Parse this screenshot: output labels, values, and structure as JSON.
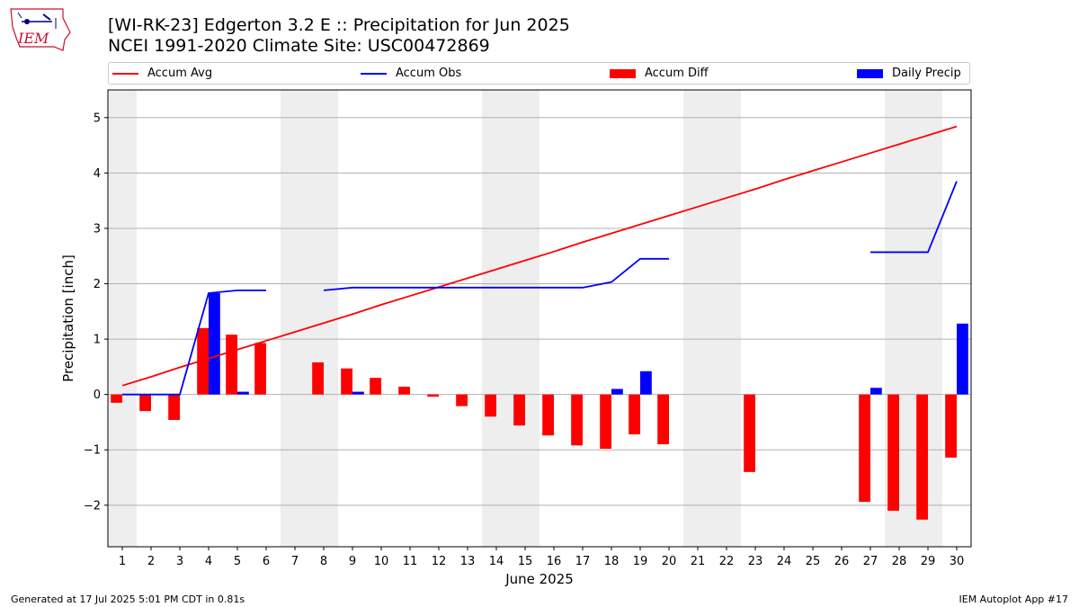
{
  "header": {
    "logo_text": "IEM",
    "title_line1": "[WI-RK-23] Edgerton 3.2 E :: Precipitation for Jun 2025",
    "title_line2": "NCEI 1991-2020 Climate Site: USC00472869"
  },
  "legend": [
    {
      "label": "Accum Avg",
      "kind": "line",
      "color": "#ff0000"
    },
    {
      "label": "Accum Obs",
      "kind": "line",
      "color": "#0000ff"
    },
    {
      "label": "Accum Diff",
      "kind": "bar",
      "color": "#ff0000"
    },
    {
      "label": "Daily Precip",
      "kind": "bar",
      "color": "#0000ff"
    }
  ],
  "footer": {
    "generated": "Generated at 17 Jul 2025 5:01 PM CDT in 0.81s",
    "app": "IEM Autoplot App #17"
  },
  "chart_data": {
    "type": "bar",
    "xlabel": "June 2025",
    "ylabel": "Precipitation [inch]",
    "ylim": [
      -2.75,
      5.5
    ],
    "yticks": [
      -2,
      -1,
      0,
      1,
      2,
      3,
      4,
      5
    ],
    "ytick_labels": [
      "−2",
      "−1",
      "0",
      "1",
      "2",
      "3",
      "4",
      "5"
    ],
    "categories": [
      "1",
      "2",
      "3",
      "4",
      "5",
      "6",
      "7",
      "8",
      "9",
      "10",
      "11",
      "12",
      "13",
      "14",
      "15",
      "16",
      "17",
      "18",
      "19",
      "20",
      "21",
      "22",
      "23",
      "24",
      "25",
      "26",
      "27",
      "28",
      "29",
      "30"
    ],
    "grid": "horizontal",
    "weekend_shading": [
      [
        1,
        1
      ],
      [
        7,
        8
      ],
      [
        14,
        15
      ],
      [
        21,
        22
      ],
      [
        28,
        29
      ]
    ],
    "series": [
      {
        "name": "Accum Avg",
        "type": "line",
        "color": "#ff0000",
        "values": [
          0.16,
          0.32,
          0.49,
          0.65,
          0.81,
          0.97,
          1.13,
          1.29,
          1.45,
          1.62,
          1.78,
          1.94,
          2.1,
          2.26,
          2.42,
          2.58,
          2.75,
          2.91,
          3.07,
          3.23,
          3.39,
          3.55,
          3.71,
          3.88,
          4.04,
          4.2,
          4.36,
          4.52,
          4.68,
          4.84
        ]
      },
      {
        "name": "Accum Obs",
        "type": "line",
        "color": "#0000ff",
        "values": [
          0.0,
          0.0,
          0.0,
          1.83,
          1.88,
          1.88,
          null,
          1.88,
          1.93,
          1.93,
          1.93,
          1.93,
          1.93,
          1.93,
          1.93,
          1.93,
          1.93,
          2.03,
          2.45,
          2.45,
          null,
          null,
          null,
          null,
          null,
          null,
          2.57,
          2.57,
          2.57,
          3.85
        ]
      },
      {
        "name": "Accum Diff",
        "type": "bar",
        "color": "#ff0000",
        "values": [
          -0.15,
          -0.3,
          -0.46,
          1.2,
          1.08,
          0.93,
          null,
          0.58,
          0.47,
          0.3,
          0.14,
          -0.04,
          -0.21,
          -0.4,
          -0.56,
          -0.74,
          -0.92,
          -0.98,
          -0.72,
          -0.9,
          null,
          null,
          -1.4,
          null,
          null,
          null,
          -1.94,
          -2.1,
          -2.26,
          -1.14
        ]
      },
      {
        "name": "Daily Precip",
        "type": "bar",
        "color": "#0000ff",
        "values": [
          0,
          0,
          0,
          1.83,
          0.05,
          0,
          null,
          0,
          0.05,
          0,
          0,
          0,
          0,
          0,
          0,
          0,
          0,
          0.1,
          0.42,
          0,
          null,
          null,
          null,
          null,
          null,
          null,
          0.12,
          0,
          0,
          1.28
        ]
      }
    ]
  }
}
